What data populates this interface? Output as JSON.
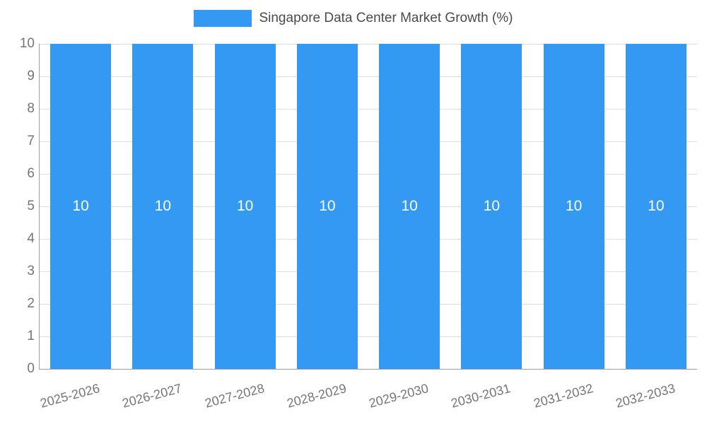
{
  "chart_data": {
    "type": "bar",
    "title": "Singapore Data Center Market Growth (%)",
    "xlabel": "",
    "ylabel": "",
    "categories": [
      "2025-2026",
      "2026-2027",
      "2027-2028",
      "2028-2029",
      "2029-2030",
      "2030-2031",
      "2031-2032",
      "2032-2033"
    ],
    "values": [
      10,
      10,
      10,
      10,
      10,
      10,
      10,
      10
    ],
    "bar_labels": [
      "10",
      "10",
      "10",
      "10",
      "10",
      "10",
      "10",
      "10"
    ],
    "ylim": [
      0,
      10
    ],
    "yticks": [
      0,
      1,
      2,
      3,
      4,
      5,
      6,
      7,
      8,
      9,
      10
    ],
    "grid": true,
    "legend_position": "top",
    "colors": {
      "bar": "#3499F2",
      "bar_value_label": "#ffffff",
      "axis_text": "#757575",
      "legend_text": "#4b4b4b",
      "gridline": "#dddddd",
      "axis_line": "#9e9e9e"
    }
  }
}
